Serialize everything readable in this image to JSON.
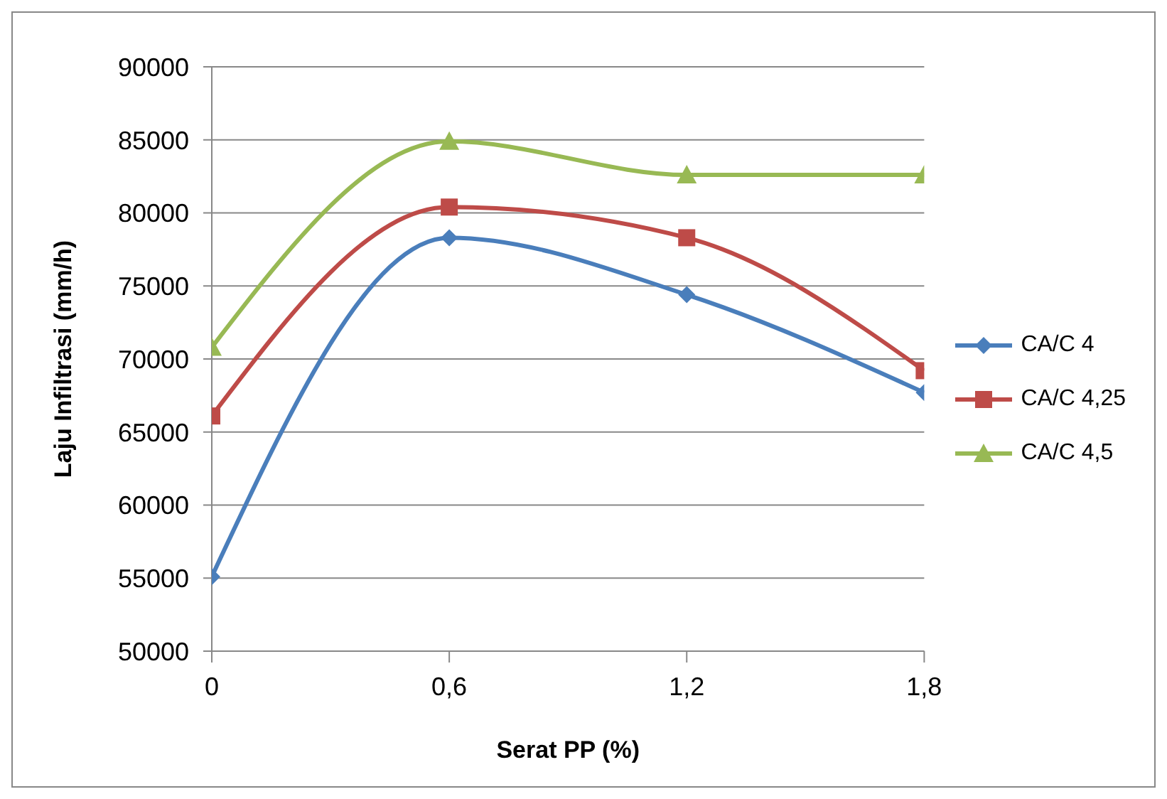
{
  "chart_data": {
    "type": "line",
    "xlabel": "Serat PP (%)",
    "ylabel": "Laju Infiltrasi (mm/h)",
    "x": [
      0,
      0.6,
      1.2,
      1.8
    ],
    "xlim": [
      0,
      1.8
    ],
    "xticks": [
      0,
      {
        "value": 0.6,
        "label": "0,6"
      },
      {
        "value": 1.2,
        "label": "1,2"
      },
      {
        "value": 1.8,
        "label": "1,8"
      }
    ],
    "ylim": [
      50000,
      90000
    ],
    "yticks": [
      50000,
      55000,
      60000,
      65000,
      70000,
      75000,
      80000,
      85000,
      90000
    ],
    "grid": "y",
    "legend": "right",
    "series": [
      {
        "name": "CA/C 4",
        "color": "#4a7ebb",
        "marker": "diamond",
        "values": [
          55100,
          78300,
          74400,
          67700
        ]
      },
      {
        "name": "CA/C 4,25",
        "color": "#be4b48",
        "marker": "square",
        "values": [
          66100,
          80400,
          78300,
          69200
        ]
      },
      {
        "name": "CA/C 4,5",
        "color": "#98b954",
        "marker": "triangle",
        "values": [
          70800,
          84900,
          82600,
          82600
        ]
      }
    ]
  }
}
